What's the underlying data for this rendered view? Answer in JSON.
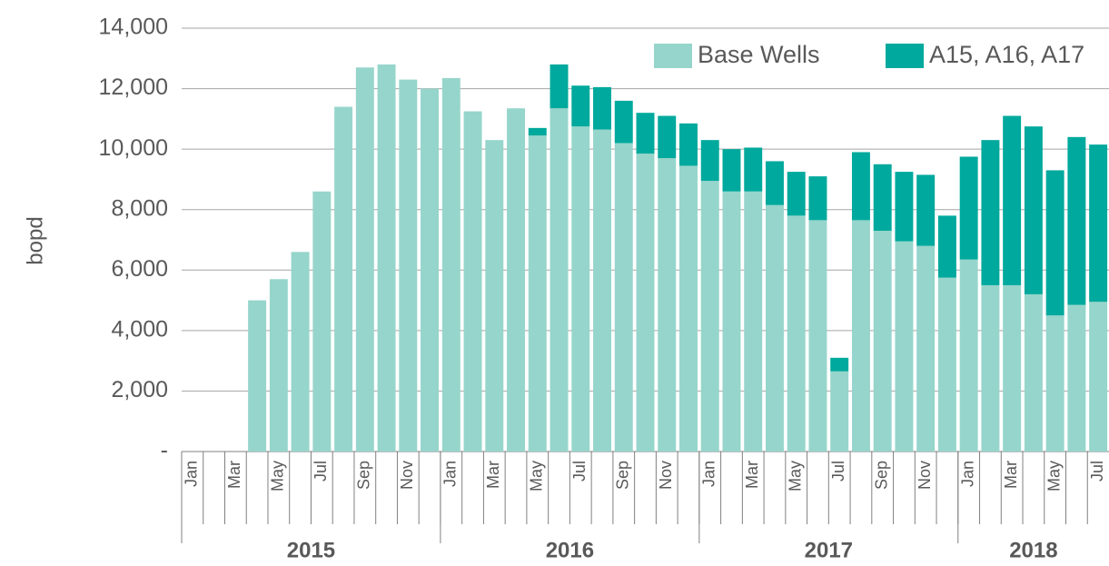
{
  "chart_data": {
    "type": "stacked_bar",
    "y_label": "bopd",
    "categories": [
      "Jan",
      null,
      "Mar",
      null,
      "May",
      null,
      "Jul",
      null,
      "Sep",
      null,
      "Nov",
      null,
      "Jan",
      null,
      "Mar",
      null,
      "May",
      null,
      "Jul",
      null,
      "Sep",
      null,
      "Nov",
      null,
      "Jan",
      null,
      "Mar",
      null,
      "May",
      null,
      "Jul",
      null,
      "Sep",
      null,
      "Nov",
      null,
      "Jan",
      null,
      "Mar",
      null,
      "May",
      null,
      "Jul"
    ],
    "years": [
      "2015",
      "2016",
      "2017",
      "2018"
    ],
    "series": [
      {
        "name": "Base Wells",
        "color": "#96d5cb",
        "values": [
          0,
          0,
          0,
          5000,
          5700,
          6600,
          8600,
          11400,
          12700,
          12800,
          12300,
          12000,
          12350,
          11250,
          10300,
          11350,
          10450,
          11350,
          10750,
          10650,
          10200,
          9850,
          9700,
          9450,
          8950,
          8600,
          8600,
          8150,
          7800,
          7650,
          2650,
          7650,
          7300,
          6950,
          6800,
          5750,
          6350,
          5500,
          5500,
          5200,
          4500,
          4850,
          4950
        ]
      },
      {
        "name": "A15, A16, A17",
        "color": "#00a99d",
        "values": [
          0,
          0,
          0,
          0,
          0,
          0,
          0,
          0,
          0,
          0,
          0,
          0,
          0,
          0,
          0,
          0,
          250,
          1450,
          1350,
          1400,
          1400,
          1350,
          1400,
          1400,
          1350,
          1400,
          1450,
          1450,
          1450,
          1450,
          450,
          2250,
          2200,
          2300,
          2350,
          2050,
          3400,
          4800,
          5600,
          5550,
          4800,
          5550,
          5200
        ]
      }
    ],
    "ylim": [
      0,
      14000
    ],
    "yticks": [
      {
        "value": 0,
        "label": "-"
      },
      {
        "value": 2000,
        "label": "2,000"
      },
      {
        "value": 4000,
        "label": "4,000"
      },
      {
        "value": 6000,
        "label": "6,000"
      },
      {
        "value": 8000,
        "label": "8,000"
      },
      {
        "value": 10000,
        "label": "10,000"
      },
      {
        "value": 12000,
        "label": "12,000"
      },
      {
        "value": 14000,
        "label": "14,000"
      }
    ],
    "grid": true,
    "legend": "top-right"
  }
}
